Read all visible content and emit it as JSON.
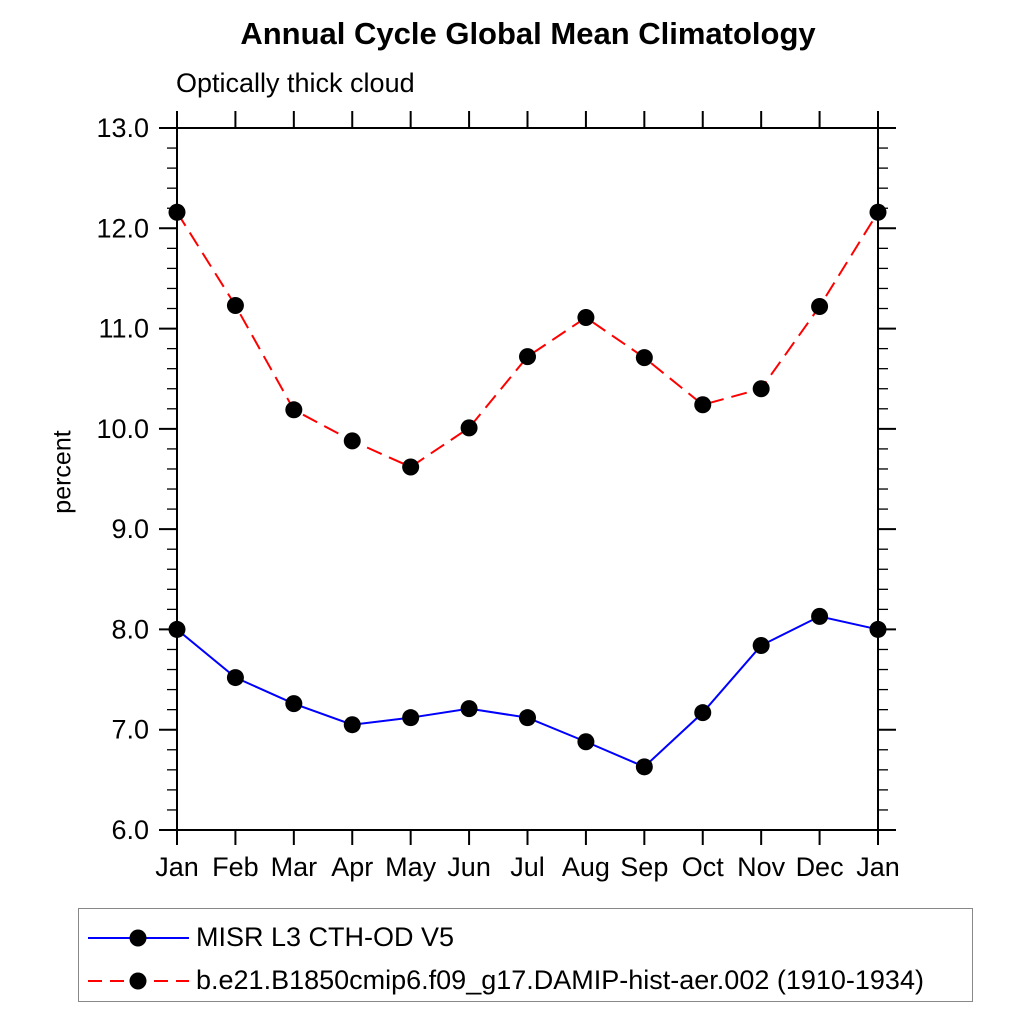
{
  "title": "Annual Cycle Global Mean Climatology",
  "subtitle": "Optically thick cloud",
  "ylabel": "percent",
  "chart_data": {
    "type": "line",
    "categories": [
      "Jan",
      "Feb",
      "Mar",
      "Apr",
      "May",
      "Jun",
      "Jul",
      "Aug",
      "Sep",
      "Oct",
      "Nov",
      "Dec",
      "Jan"
    ],
    "series": [
      {
        "name": "MISR L3 CTH-OD V5",
        "color": "#0000ff",
        "line_style": "solid",
        "values": [
          8.0,
          7.52,
          7.26,
          7.05,
          7.12,
          7.21,
          7.12,
          6.88,
          6.63,
          7.17,
          7.84,
          8.13,
          8.0
        ]
      },
      {
        "name": "b.e21.B1850cmip6.f09_g17.DAMIP-hist-aer.002 (1910-1934)",
        "color": "#ff0000",
        "line_style": "dashed",
        "values": [
          12.16,
          11.23,
          10.19,
          9.88,
          9.62,
          10.01,
          10.72,
          11.11,
          10.71,
          10.24,
          10.4,
          11.22,
          12.16
        ]
      }
    ],
    "ylim": [
      6.0,
      13.0
    ],
    "yticks": [
      {
        "value": 6.0,
        "label": "6.0"
      },
      {
        "value": 7.0,
        "label": "7.0"
      },
      {
        "value": 8.0,
        "label": "8.0"
      },
      {
        "value": 9.0,
        "label": "9.0"
      },
      {
        "value": 10.0,
        "label": "10.0"
      },
      {
        "value": 11.0,
        "label": "11.0"
      },
      {
        "value": 12.0,
        "label": "12.0"
      },
      {
        "value": 13.0,
        "label": "13.0"
      }
    ],
    "ytick_minor": 0.2,
    "marker": "filled-circle",
    "marker_color": "#000000",
    "grid": false,
    "legend_position": "bottom"
  }
}
